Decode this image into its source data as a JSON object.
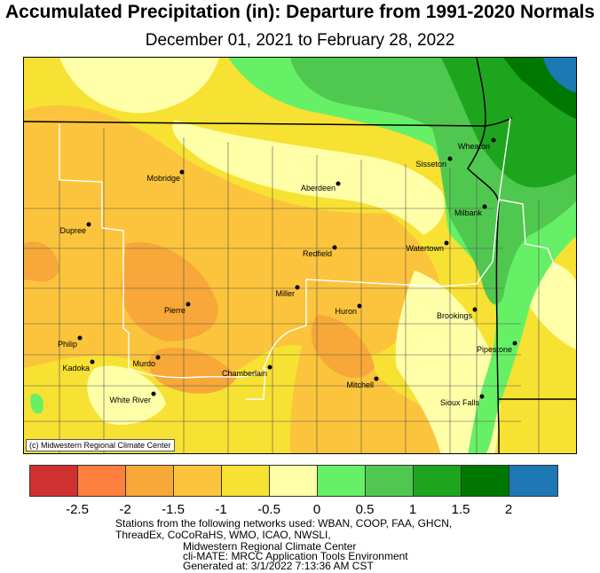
{
  "title": "Accumulated Precipitation (in): Departure from 1991-2020 Normals",
  "subtitle": "December 01, 2021 to February 28, 2022",
  "credit": "(c) Midwestern Regional Climate Center",
  "legend": {
    "colors": [
      "#d03030",
      "#ff7f3f",
      "#f7a838",
      "#fbc43c",
      "#f7e133",
      "#ffffa8",
      "#66f066",
      "#50c850",
      "#1ea51e",
      "#007800",
      "#1e78b4"
    ],
    "ticks": [
      "-2.5",
      "-2",
      "-1.5",
      "-1",
      "-0.5",
      "0",
      "0.5",
      "1",
      "1.5",
      "2"
    ]
  },
  "cities": [
    {
      "name": "Mobridge",
      "label_side": "left"
    },
    {
      "name": "Aberdeen",
      "label_side": "left"
    },
    {
      "name": "Sisseton",
      "label_side": "left"
    },
    {
      "name": "Wheaton",
      "label_side": "left"
    },
    {
      "name": "Milbank",
      "label_side": "left"
    },
    {
      "name": "Dupree",
      "label_side": "left"
    },
    {
      "name": "Watertown",
      "label_side": "left"
    },
    {
      "name": "Redfield",
      "label_side": "left"
    },
    {
      "name": "Miller",
      "label_side": "left"
    },
    {
      "name": "Pierre",
      "label_side": "left"
    },
    {
      "name": "Huron",
      "label_side": "left"
    },
    {
      "name": "Brookings",
      "label_side": "left"
    },
    {
      "name": "Philip",
      "label_side": "left"
    },
    {
      "name": "Kadoka",
      "label_side": "left"
    },
    {
      "name": "Murdo",
      "label_side": "left"
    },
    {
      "name": "Chamberlain",
      "label_side": "left"
    },
    {
      "name": "Pipestone",
      "label_side": "left"
    },
    {
      "name": "Mitchell",
      "label_side": "left"
    },
    {
      "name": "White River",
      "label_side": "left"
    },
    {
      "name": "Sioux Falls",
      "label_side": "left"
    }
  ],
  "footer": {
    "line1": "Stations from the following networks used: WBAN, COOP, FAA, GHCN,",
    "line2": "ThreadEx, CoCoRaHS, WMO, ICAO, NWSLI,",
    "line3": "Midwestern Regional Climate Center",
    "line4": "cli-MATE: MRCC Application Tools Environment",
    "line5": "Generated at: 3/1/2022 7:13:36 AM CST"
  }
}
